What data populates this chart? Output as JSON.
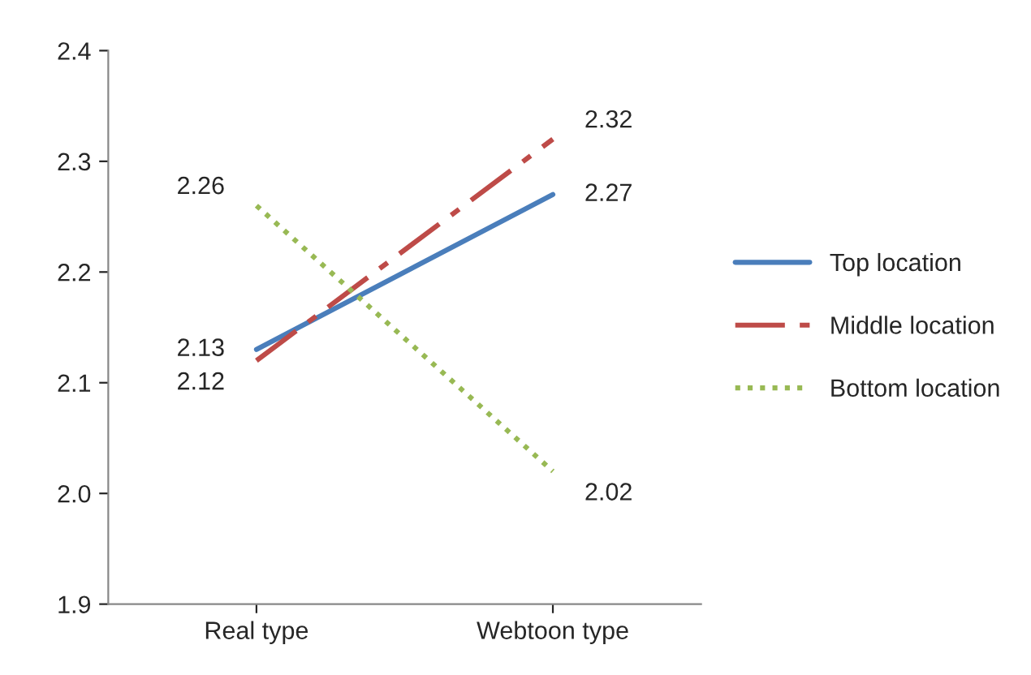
{
  "chart_data": {
    "type": "line",
    "categories": [
      "Real type",
      "Webtoon type"
    ],
    "series": [
      {
        "name": "Top location",
        "color": "#4a7ebb",
        "values": [
          2.13,
          2.27
        ],
        "line_style": "solid"
      },
      {
        "name": "Middle location",
        "color": "#be4b48",
        "values": [
          2.12,
          2.32
        ],
        "line_style": "dashed"
      },
      {
        "name": "Bottom location",
        "color": "#98b954",
        "values": [
          2.26,
          2.02
        ],
        "line_style": "dotted"
      }
    ],
    "ylim": [
      1.9,
      2.4
    ],
    "yticks": [
      {
        "value": 1.9,
        "label": "1.9"
      },
      {
        "value": 2.0,
        "label": "2.0"
      },
      {
        "value": 2.1,
        "label": "2.1"
      },
      {
        "value": 2.2,
        "label": "2.2"
      },
      {
        "value": 2.3,
        "label": "2.3"
      },
      {
        "value": 2.4,
        "label": "2.4"
      }
    ],
    "data_labels": true,
    "legend": "right",
    "grid": false,
    "marker": "none"
  }
}
